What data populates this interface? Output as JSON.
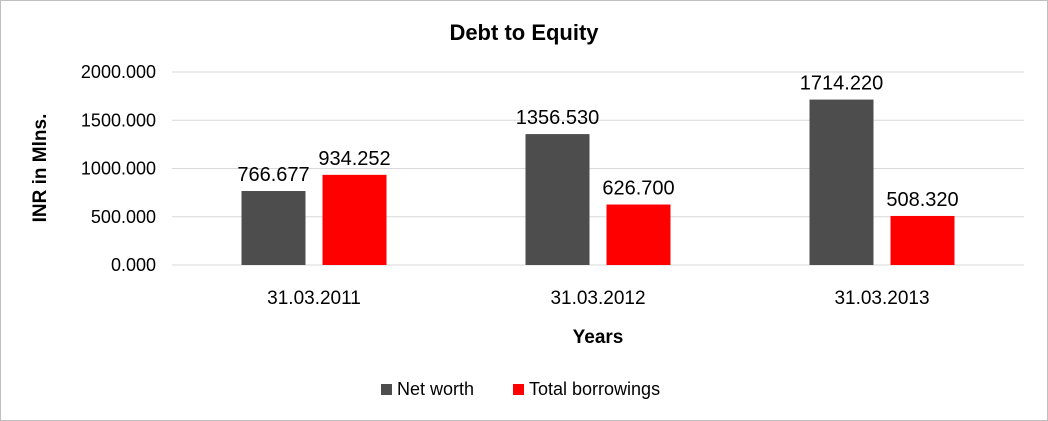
{
  "chart_data": {
    "type": "bar",
    "title": "Debt to Equity",
    "xlabel": "Years",
    "ylabel": "INR in Mlns.",
    "categories": [
      "31.03.2011",
      "31.03.2012",
      "31.03.2013"
    ],
    "series": [
      {
        "name": "Net worth",
        "color": "#4d4d4d",
        "values": [
          766.677,
          1356.53,
          1714.22
        ],
        "labels": [
          "766.677",
          "1356.530",
          "1714.220"
        ]
      },
      {
        "name": "Total borrowings",
        "color": "#ff0000",
        "values": [
          934.252,
          626.7,
          508.32
        ],
        "labels": [
          "934.252",
          "626.700",
          "508.320"
        ]
      }
    ],
    "ylim": [
      0,
      2000
    ],
    "yticks": [
      {
        "value": 0,
        "label": "0.000"
      },
      {
        "value": 500,
        "label": "500.000"
      },
      {
        "value": 1000,
        "label": "1000.000"
      },
      {
        "value": 1500,
        "label": "1500.000"
      },
      {
        "value": 2000,
        "label": "2000.000"
      }
    ],
    "grid": true,
    "legend_position": "bottom"
  }
}
